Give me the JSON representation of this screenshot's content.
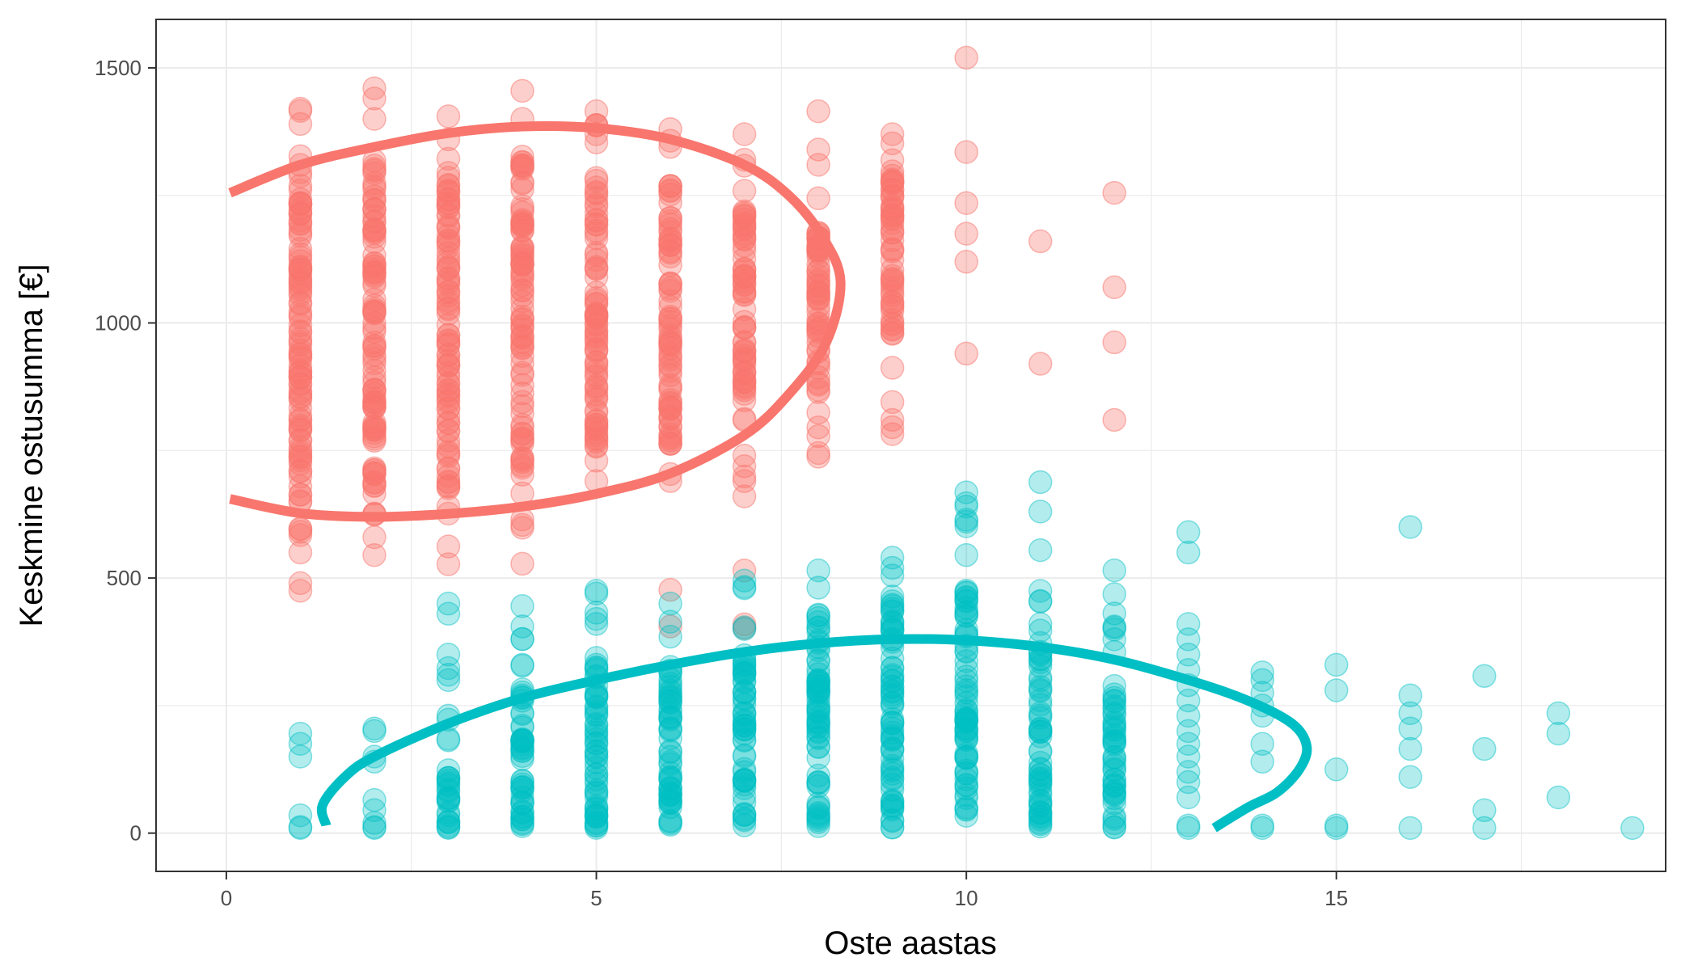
{
  "chart_data": {
    "type": "scatter",
    "title": "",
    "xlabel": "Oste aastas",
    "ylabel": "Keskmine ostusumma [€]",
    "xlim": [
      -0.95,
      19.45
    ],
    "ylim": [
      -75,
      1595
    ],
    "xticks": [
      0,
      5,
      10,
      15
    ],
    "xtick_labels": [
      "0",
      "5",
      "10",
      "15"
    ],
    "yticks": [
      0,
      500,
      1000,
      1500
    ],
    "ytick_labels": [
      "0",
      "500",
      "1000",
      "1500"
    ],
    "grid": true,
    "legend": "none",
    "series": [
      {
        "name": "red",
        "color": "#F8766D",
        "opacity": 0.35,
        "columns": [
          {
            "x": 1,
            "y_min": 470,
            "y_max": 1420,
            "dense_min": 580,
            "dense_max": 1330,
            "outliers": [
              475,
              490,
              550,
              1390,
              1420
            ]
          },
          {
            "x": 2,
            "y_min": 540,
            "y_max": 1460,
            "dense_min": 620,
            "dense_max": 1320,
            "outliers": [
              545,
              580,
              1400,
              1440,
              1460
            ]
          },
          {
            "x": 3,
            "y_min": 525,
            "y_max": 1405,
            "dense_min": 660,
            "dense_max": 1300,
            "outliers": [
              527,
              640,
              1360,
              1405
            ]
          },
          {
            "x": 4,
            "y_min": 525,
            "y_max": 1455,
            "dense_min": 700,
            "dense_max": 1320,
            "outliers": [
              528,
              615,
              1400,
              1455
            ]
          },
          {
            "x": 5,
            "y_min": 680,
            "y_max": 1415,
            "dense_min": 750,
            "dense_max": 1300,
            "outliers": [
              690,
              730,
              1370,
              1415
            ]
          },
          {
            "x": 6,
            "y_min": 405,
            "y_max": 1380,
            "dense_min": 760,
            "dense_max": 1290,
            "outliers": [
              405,
              690,
              1345,
              1380
            ]
          },
          {
            "x": 7,
            "y_min": 400,
            "y_max": 1370,
            "dense_min": 800,
            "dense_max": 1260,
            "outliers": [
              402,
              660,
              690,
              740,
              1320,
              1370
            ]
          },
          {
            "x": 8,
            "y_min": 735,
            "y_max": 1415,
            "dense_min": 820,
            "dense_max": 1180,
            "outliers": [
              738,
              745,
              1310,
              1340,
              1415
            ]
          },
          {
            "x": 9,
            "y_min": 780,
            "y_max": 1370,
            "dense_min": 960,
            "dense_max": 1300,
            "outliers": [
              782,
              810,
              845,
              980,
              1370
            ]
          },
          {
            "x": 10,
            "values": [
              940,
              1120,
              1175,
              1235,
              1335,
              1520
            ]
          },
          {
            "x": 11,
            "values": [
              920,
              1160
            ]
          },
          {
            "x": 12,
            "values": [
              810,
              962,
              1070,
              1255
            ]
          }
        ],
        "curve": [
          [
            0.05,
            1255
          ],
          [
            1.0,
            1310
          ],
          [
            2.0,
            1345
          ],
          [
            3.0,
            1372
          ],
          [
            4.0,
            1385
          ],
          [
            5.0,
            1382
          ],
          [
            6.0,
            1360
          ],
          [
            7.0,
            1310
          ],
          [
            7.6,
            1250
          ],
          [
            8.05,
            1170
          ],
          [
            8.3,
            1080
          ],
          [
            8.1,
            960
          ],
          [
            7.6,
            860
          ],
          [
            7.0,
            780
          ],
          [
            6.0,
            705
          ],
          [
            5.0,
            665
          ],
          [
            4.0,
            640
          ],
          [
            3.0,
            626
          ],
          [
            2.0,
            620
          ],
          [
            1.0,
            627
          ],
          [
            0.05,
            655
          ]
        ]
      },
      {
        "name": "teal",
        "color": "#00BFC4",
        "opacity": 0.3,
        "columns": [
          {
            "x": 1,
            "values": [
              10,
              12,
              35,
              150,
              175,
              195
            ]
          },
          {
            "x": 2,
            "values": [
              10,
              12,
              20,
              45,
              65,
              140,
              150,
              200,
              205
            ]
          },
          {
            "x": 3,
            "y_min": 10,
            "y_max": 450,
            "dense_min": 10,
            "dense_max": 120,
            "outliers": [
              300,
              350,
              430,
              450
            ]
          },
          {
            "x": 4,
            "y_min": 10,
            "y_max": 450,
            "dense_min": 10,
            "dense_max": 300,
            "outliers": [
              405,
              445
            ]
          },
          {
            "x": 5,
            "y_min": 10,
            "y_max": 480,
            "dense_min": 10,
            "dense_max": 360,
            "outliers": [
              410,
              420,
              475
            ]
          },
          {
            "x": 6,
            "y_min": 10,
            "y_max": 450,
            "dense_min": 10,
            "dense_max": 340,
            "outliers": [
              385,
              450
            ]
          },
          {
            "x": 7,
            "y_min": 10,
            "y_max": 500,
            "dense_min": 10,
            "dense_max": 350,
            "outliers": [
              400,
              480,
              495
            ]
          },
          {
            "x": 8,
            "y_min": 10,
            "y_max": 520,
            "dense_min": 10,
            "dense_max": 440,
            "outliers": [
              515
            ]
          },
          {
            "x": 9,
            "y_min": 10,
            "y_max": 540,
            "dense_min": 10,
            "dense_max": 480,
            "outliers": [
              505,
              540
            ]
          },
          {
            "x": 10,
            "y_min": 10,
            "y_max": 670,
            "dense_min": 10,
            "dense_max": 490,
            "outliers": [
              640,
              668
            ]
          },
          {
            "x": 11,
            "y_min": 10,
            "y_max": 690,
            "dense_min": 10,
            "dense_max": 370,
            "outliers": [
              410,
              455,
              688
            ]
          },
          {
            "x": 12,
            "y_min": 10,
            "y_max": 515,
            "dense_min": 10,
            "dense_max": 280,
            "outliers": [
              355,
              380,
              405,
              515
            ]
          },
          {
            "x": 13,
            "values": [
              10,
              15,
              70,
              100,
              120,
              150,
              175,
              200,
              230,
              260,
              290,
              320,
              350,
              380,
              410,
              550,
              590
            ]
          },
          {
            "x": 14,
            "values": [
              10,
              15,
              140,
              175,
              230,
              250,
              275,
              300,
              315
            ]
          },
          {
            "x": 15,
            "values": [
              10,
              15,
              125,
              280,
              330
            ]
          },
          {
            "x": 16,
            "values": [
              10,
              110,
              165,
              205,
              235,
              270,
              600
            ]
          },
          {
            "x": 17,
            "values": [
              10,
              45,
              165,
              308
            ]
          },
          {
            "x": 18,
            "values": [
              70,
              195,
              235
            ]
          },
          {
            "x": 19,
            "values": [
              10
            ]
          }
        ],
        "curve": [
          [
            1.35,
            15
          ],
          [
            1.3,
            55
          ],
          [
            1.6,
            110
          ],
          [
            2.0,
            150
          ],
          [
            3.0,
            215
          ],
          [
            4.0,
            265
          ],
          [
            5.0,
            300
          ],
          [
            6.0,
            330
          ],
          [
            7.0,
            355
          ],
          [
            8.0,
            372
          ],
          [
            9.0,
            380
          ],
          [
            10.0,
            378
          ],
          [
            11.0,
            365
          ],
          [
            12.0,
            340
          ],
          [
            13.0,
            300
          ],
          [
            13.8,
            260
          ],
          [
            14.4,
            215
          ],
          [
            14.6,
            170
          ],
          [
            14.5,
            125
          ],
          [
            14.2,
            80
          ],
          [
            13.8,
            50
          ],
          [
            13.35,
            10
          ]
        ]
      }
    ]
  }
}
